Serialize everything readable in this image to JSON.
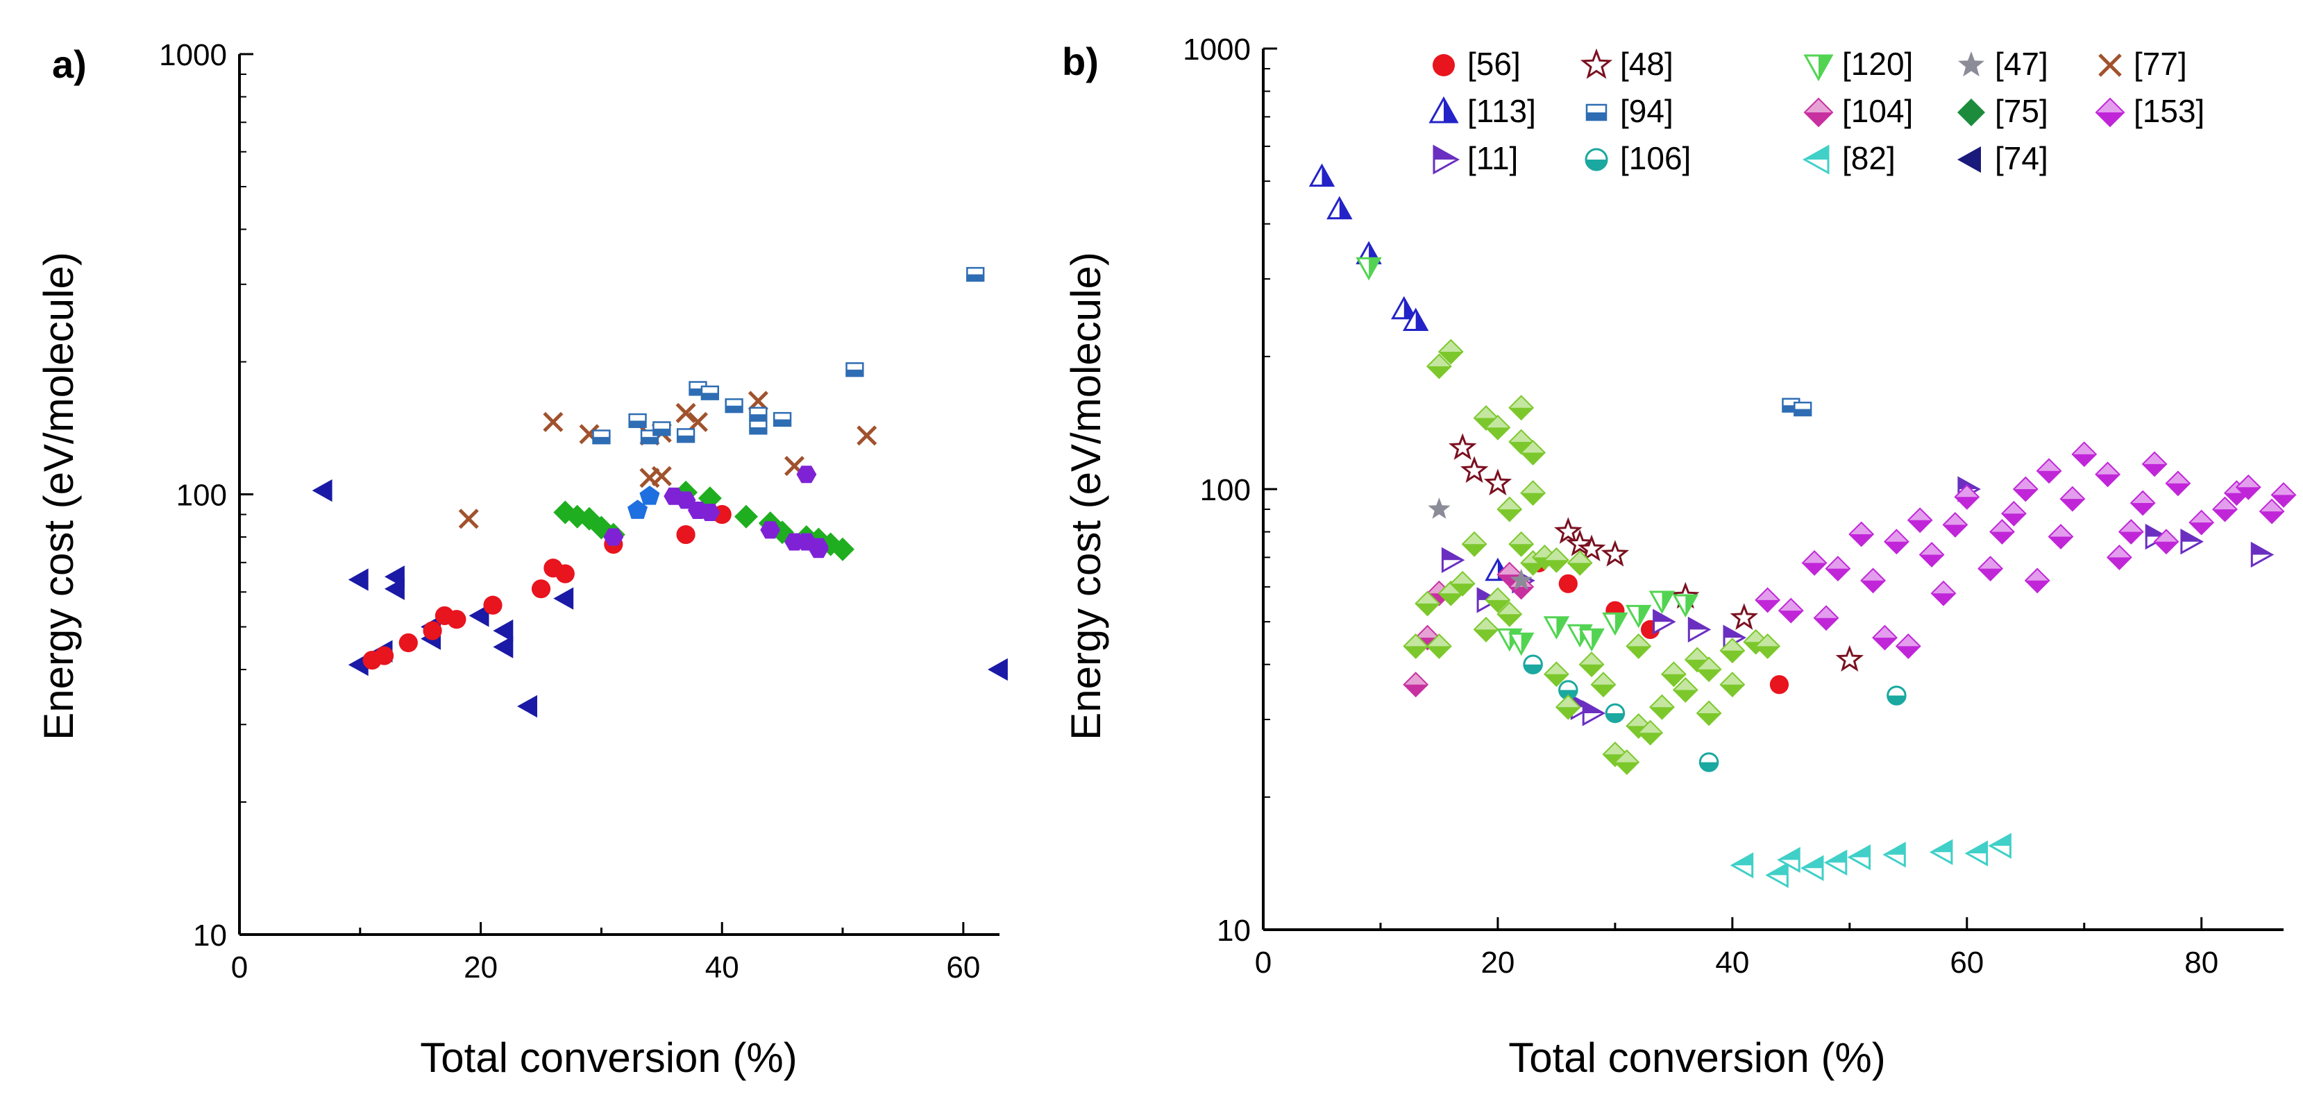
{
  "chart_data": [
    {
      "type": "scatter",
      "panel_label": "a)",
      "title": "",
      "xlabel": "Total conversion (%)",
      "ylabel": "Energy cost (eV/molecule)",
      "xlim": [
        0,
        63
      ],
      "ylim": [
        10,
        1000
      ],
      "yscale": "log",
      "x_ticks": [
        0,
        20,
        40,
        60
      ],
      "x_tick_labels": [
        "0",
        "20",
        "40",
        "60"
      ],
      "y_ticks": [
        10,
        100,
        1000
      ],
      "y_tick_labels": [
        "10",
        "100",
        "1000"
      ],
      "grid": false,
      "series": [
        {
          "marker": "triangle-left-filled",
          "color": "#1a1aa6",
          "points": [
            [
              7,
              102
            ],
            [
              10,
              64
            ],
            [
              10,
              41
            ],
            [
              13,
              65
            ],
            [
              13,
              61
            ],
            [
              12,
              44
            ],
            [
              16,
              50
            ],
            [
              16,
              47
            ],
            [
              20,
              53
            ],
            [
              22,
              49
            ],
            [
              22,
              45
            ],
            [
              24,
              33
            ],
            [
              27,
              58
            ],
            [
              63,
              40
            ]
          ]
        },
        {
          "marker": "circle",
          "color": "#e8141e",
          "points": [
            [
              11,
              42
            ],
            [
              12,
              43
            ],
            [
              14,
              46
            ],
            [
              16,
              49
            ],
            [
              17,
              53
            ],
            [
              18,
              52
            ],
            [
              21,
              56
            ],
            [
              25,
              61
            ],
            [
              26,
              68
            ],
            [
              27,
              66
            ],
            [
              31,
              77
            ],
            [
              37,
              81
            ],
            [
              40,
              90
            ]
          ]
        },
        {
          "marker": "cross",
          "color": "#a0522d",
          "points": [
            [
              19,
              88
            ],
            [
              26,
              146
            ],
            [
              29,
              137
            ],
            [
              34,
              109
            ],
            [
              34,
              136
            ],
            [
              35,
              138
            ],
            [
              35,
              110
            ],
            [
              37,
              153
            ],
            [
              38,
              146
            ],
            [
              43,
              163
            ],
            [
              46,
              116
            ],
            [
              52,
              136
            ]
          ]
        },
        {
          "marker": "square-half",
          "color": "#2e6db4",
          "points": [
            [
              30,
              135
            ],
            [
              33,
              147
            ],
            [
              34,
              135
            ],
            [
              35,
              141
            ],
            [
              37,
              136
            ],
            [
              38,
              174
            ],
            [
              39,
              170
            ],
            [
              41,
              159
            ],
            [
              43,
              152
            ],
            [
              43,
              142
            ],
            [
              45,
              148
            ],
            [
              51,
              192
            ],
            [
              61,
              316
            ]
          ]
        },
        {
          "marker": "diamond-filled",
          "color": "#1fae1f",
          "points": [
            [
              27,
              91
            ],
            [
              28,
              89
            ],
            [
              29,
              88
            ],
            [
              30,
              84
            ],
            [
              31,
              81
            ],
            [
              37,
              101
            ],
            [
              39,
              98
            ],
            [
              42,
              89
            ],
            [
              44,
              86
            ],
            [
              45,
              82
            ],
            [
              47,
              80
            ],
            [
              48,
              79
            ],
            [
              49,
              77
            ],
            [
              50,
              75
            ]
          ]
        },
        {
          "marker": "pentagon",
          "color": "#1e6fe0",
          "points": [
            [
              33,
              92
            ],
            [
              34,
              99
            ]
          ]
        },
        {
          "marker": "hexagon",
          "color": "#7f22d6",
          "points": [
            [
              31,
              80
            ],
            [
              36,
              99
            ],
            [
              37,
              97
            ],
            [
              38,
              92
            ],
            [
              39,
              91
            ],
            [
              44,
              83
            ],
            [
              46,
              78
            ],
            [
              47,
              111
            ],
            [
              47,
              78
            ],
            [
              48,
              76
            ],
            [
              48,
              75
            ]
          ]
        }
      ]
    },
    {
      "type": "scatter",
      "panel_label": "b)",
      "title": "",
      "xlabel": "Total conversion (%)",
      "ylabel": "Energy cost (eV/molecule)",
      "xlim": [
        0,
        87
      ],
      "ylim": [
        10,
        1000
      ],
      "yscale": "log",
      "x_ticks": [
        0,
        20,
        40,
        60,
        80
      ],
      "x_tick_labels": [
        "0",
        "20",
        "40",
        "60",
        "80"
      ],
      "y_ticks": [
        10,
        100,
        1000
      ],
      "y_tick_labels": [
        "10",
        "100",
        "1000"
      ],
      "grid": false,
      "legend_position": "top",
      "series": [
        {
          "name": "[56]",
          "marker": "circle",
          "color": "#e8141e",
          "points": [
            [
              23.5,
              68
            ],
            [
              26,
              61
            ],
            [
              30,
              53
            ],
            [
              33,
              48
            ],
            [
              44,
              36
            ]
          ]
        },
        {
          "name": "[113]",
          "marker": "triangle-up-split",
          "color": "#2323c8",
          "points": [
            [
              5,
              510
            ],
            [
              6.5,
              430
            ],
            [
              9,
              340
            ],
            [
              12,
              255
            ],
            [
              13,
              240
            ],
            [
              20,
              65
            ]
          ]
        },
        {
          "name": "[11]",
          "marker": "triangle-right-split",
          "color": "#6a2fc0",
          "points": [
            [
              16,
              69
            ],
            [
              19,
              56
            ],
            [
              22,
              62
            ],
            [
              27,
              32
            ],
            [
              28,
              31
            ],
            [
              34,
              50
            ],
            [
              37,
              48
            ],
            [
              40,
              46
            ],
            [
              60,
              100
            ],
            [
              76,
              78
            ],
            [
              79,
              76
            ],
            [
              85,
              71
            ]
          ]
        },
        {
          "name": "[48]",
          "marker": "star-open",
          "color": "#7a1020",
          "points": [
            [
              17,
              124
            ],
            [
              18,
              110
            ],
            [
              20,
              103
            ],
            [
              26,
              80
            ],
            [
              27,
              75
            ],
            [
              28,
              73
            ],
            [
              30,
              71
            ],
            [
              36,
              57
            ],
            [
              41,
              51
            ],
            [
              50,
              41
            ]
          ]
        },
        {
          "name": "[94]",
          "marker": "square-half",
          "color": "#2e6db4",
          "points": [
            [
              45,
              155
            ],
            [
              46,
              152
            ]
          ]
        },
        {
          "name": "[106]",
          "marker": "circle-half",
          "color": "#1aa8a0",
          "points": [
            [
              23,
              40
            ],
            [
              26,
              35
            ],
            [
              30,
              31
            ],
            [
              38,
              24
            ],
            [
              54,
              34
            ]
          ]
        },
        {
          "name": "[120]",
          "marker": "triangle-down-split",
          "color": "#52d452",
          "points": [
            [
              9,
              320
            ],
            [
              21,
              46
            ],
            [
              22,
              45
            ],
            [
              25,
              49
            ],
            [
              27,
              47
            ],
            [
              28,
              46
            ],
            [
              30,
              50
            ],
            [
              32,
              52
            ],
            [
              34,
              56
            ],
            [
              36,
              55
            ]
          ]
        },
        {
          "name": "[104]",
          "marker": "diamond-split",
          "color": "#c830a0",
          "points": [
            [
              13,
              36
            ],
            [
              14,
              46
            ],
            [
              15,
              58
            ],
            [
              21,
              64
            ],
            [
              22,
              60
            ]
          ]
        },
        {
          "name": "[82]",
          "marker": "triangle-left-split",
          "color": "#40d0c8",
          "points": [
            [
              41,
              14
            ],
            [
              44,
              13.3
            ],
            [
              45,
              14.4
            ],
            [
              47,
              13.8
            ],
            [
              49,
              14.2
            ],
            [
              51,
              14.6
            ],
            [
              54,
              14.8
            ],
            [
              58,
              15
            ],
            [
              61,
              14.9
            ],
            [
              63,
              15.5
            ]
          ]
        },
        {
          "name": "[47]",
          "marker": "star-filled",
          "color": "#8c8c98",
          "points": [
            [
              15,
              90
            ],
            [
              22,
              62
            ]
          ]
        },
        {
          "name": "[75]",
          "marker": "diamond-filled",
          "color": "#1c8c3c",
          "points": []
        },
        {
          "name": "[74]",
          "marker": "triangle-left-filled",
          "color": "#1a1a7a",
          "points": []
        },
        {
          "name": "[77]",
          "marker": "cross",
          "color": "#a0522d",
          "points": []
        },
        {
          "name": "[153]",
          "marker": "diamond-split",
          "color": "#c026d8",
          "points": [
            [
              43,
              56
            ],
            [
              45,
              53
            ],
            [
              47,
              68
            ],
            [
              48,
              51
            ],
            [
              49,
              66
            ],
            [
              51,
              79
            ],
            [
              52,
              62
            ],
            [
              53,
              46
            ],
            [
              54,
              76
            ],
            [
              55,
              44
            ],
            [
              56,
              85
            ],
            [
              57,
              71
            ],
            [
              58,
              58
            ],
            [
              59,
              83
            ],
            [
              60,
              96
            ],
            [
              62,
              66
            ],
            [
              63,
              80
            ],
            [
              64,
              88
            ],
            [
              65,
              100
            ],
            [
              66,
              62
            ],
            [
              67,
              110
            ],
            [
              68,
              78
            ],
            [
              69,
              95
            ],
            [
              70,
              120
            ],
            [
              72,
              108
            ],
            [
              73,
              70
            ],
            [
              74,
              80
            ],
            [
              75,
              93
            ],
            [
              76,
              114
            ],
            [
              77,
              76
            ],
            [
              78,
              103
            ],
            [
              80,
              84
            ],
            [
              82,
              90
            ],
            [
              83,
              98
            ],
            [
              84,
              101
            ],
            [
              86,
              89
            ],
            [
              87,
              97
            ]
          ]
        },
        {
          "name": "",
          "marker": "diamond-split",
          "color": "#7cc82c",
          "points": [
            [
              13,
              44
            ],
            [
              14,
              55
            ],
            [
              15,
              44
            ],
            [
              16,
              58
            ],
            [
              17,
              61
            ],
            [
              18,
              75
            ],
            [
              19,
              48
            ],
            [
              20,
              56
            ],
            [
              21,
              52
            ],
            [
              21,
              90
            ],
            [
              22,
              75
            ],
            [
              23,
              98
            ],
            [
              23,
              68
            ],
            [
              24,
              70
            ],
            [
              25,
              69
            ],
            [
              25,
              38
            ],
            [
              26,
              32
            ],
            [
              27,
              68
            ],
            [
              28,
              40
            ],
            [
              29,
              36
            ],
            [
              30,
              25
            ],
            [
              31,
              24
            ],
            [
              32,
              44
            ],
            [
              32,
              29
            ],
            [
              33,
              28
            ],
            [
              34,
              32
            ],
            [
              35,
              38
            ],
            [
              36,
              35
            ],
            [
              37,
              41
            ],
            [
              38,
              31
            ],
            [
              38,
              39
            ],
            [
              40,
              36
            ],
            [
              40,
              43
            ],
            [
              42,
              45
            ],
            [
              43,
              44
            ],
            [
              15,
              190
            ],
            [
              16,
              205
            ],
            [
              19,
              145
            ],
            [
              20,
              138
            ],
            [
              22,
              153
            ],
            [
              22,
              128
            ],
            [
              23,
              121
            ]
          ]
        }
      ]
    }
  ]
}
